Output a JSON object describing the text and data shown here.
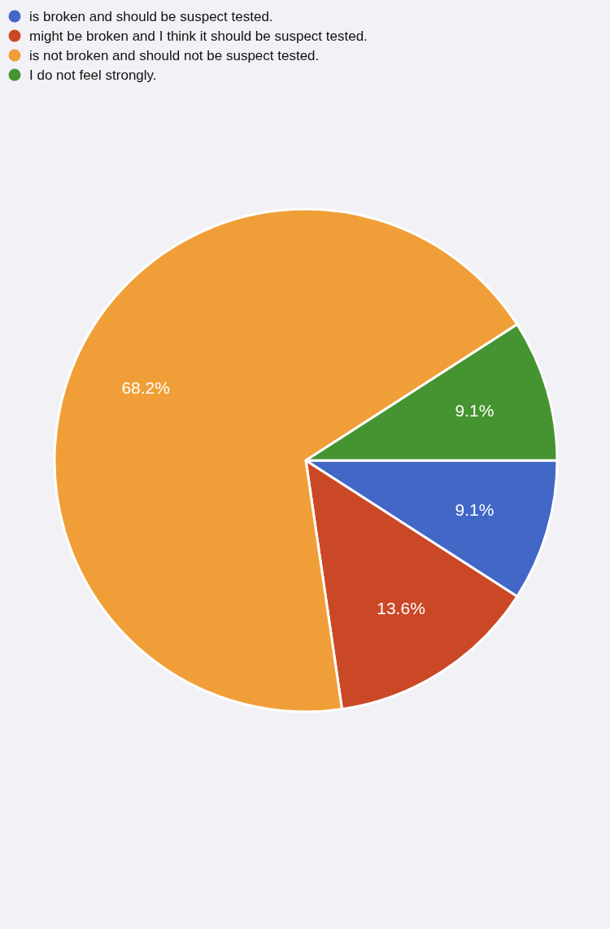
{
  "chart_data": {
    "type": "pie",
    "categories": [
      "is broken and should be suspect tested.",
      "might be broken and I think it should be suspect tested.",
      "is not broken and should not be suspect tested.",
      "I do not feel strongly."
    ],
    "values": [
      9.1,
      13.6,
      68.2,
      9.1
    ],
    "colors": [
      "#4267c7",
      "#cb4827",
      "#f09f38",
      "#459431"
    ],
    "value_labels": [
      "9.1%",
      "13.6%",
      "68.2%",
      "9.1%"
    ],
    "legend": "top left"
  }
}
